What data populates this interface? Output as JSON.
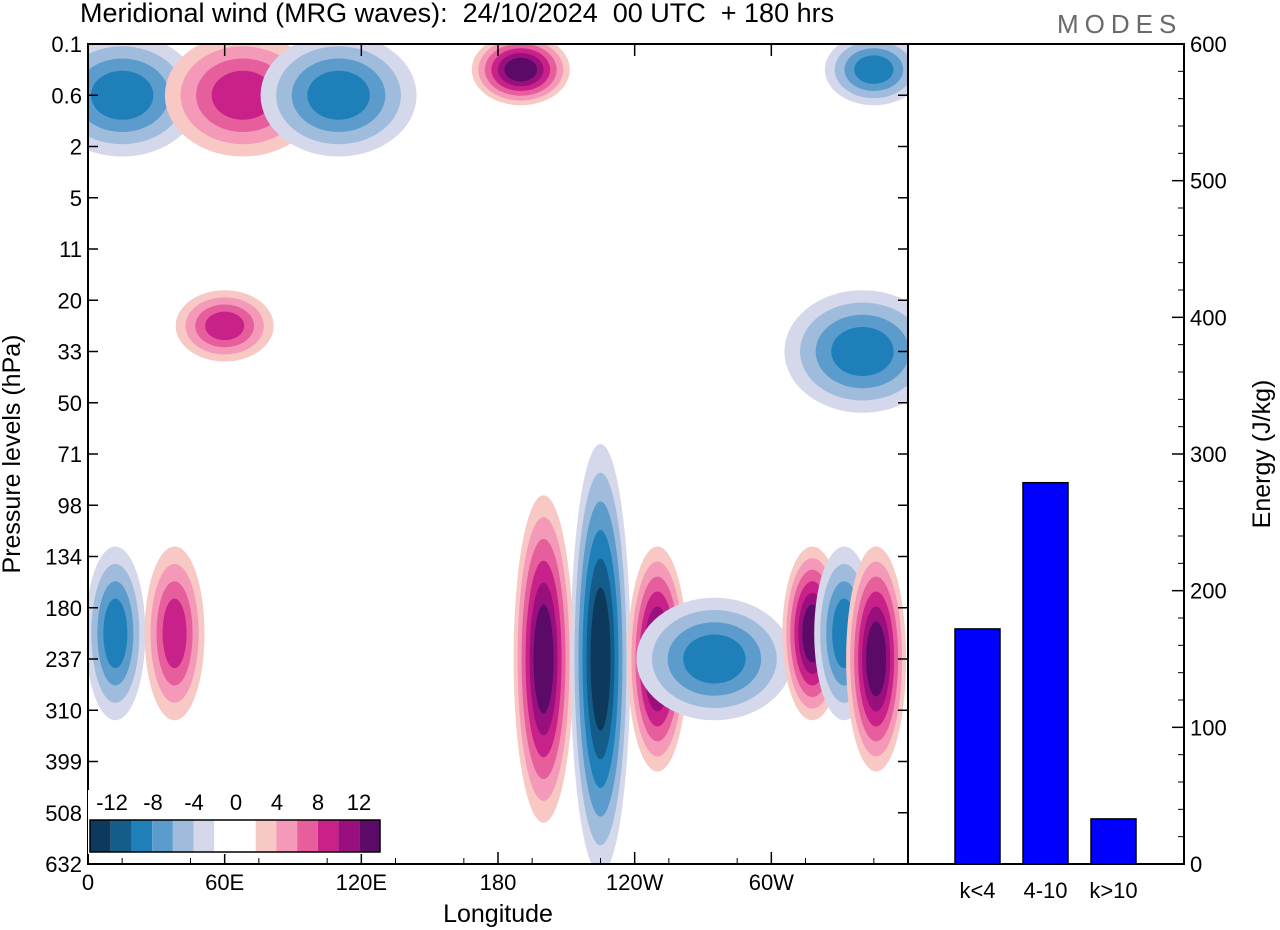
{
  "title": "Meridional wind (MRG waves):  24/10/2024  00 UTC  + 180 hrs",
  "brand": "MODES",
  "contour_panel": {
    "xlabel": "Longitude",
    "ylabel": "Pressure levels (hPa)",
    "x_ticks": [
      "0",
      "60E",
      "120E",
      "180",
      "120W",
      "60W"
    ],
    "y_ticks": [
      "0.1",
      "0.6",
      "2",
      "5",
      "11",
      "20",
      "33",
      "50",
      "71",
      "98",
      "134",
      "180",
      "237",
      "310",
      "399",
      "508",
      "632"
    ],
    "colorbar": {
      "labels": [
        "-12",
        "-8",
        "-4",
        "0",
        "4",
        "8",
        "12"
      ],
      "colors": [
        "#0d3a5c",
        "#145c8a",
        "#1f7fb8",
        "#5b9ccc",
        "#a0bcdc",
        "#d4d8ea",
        "#ffffff",
        "#ffffff",
        "#f8c8c4",
        "#f49ab8",
        "#e65e9c",
        "#c8218a",
        "#9a0f7e",
        "#5c0a68"
      ]
    }
  },
  "chart_data": [
    {
      "type": "heatmap",
      "title": "Meridional wind (MRG waves):  24/10/2024  00 UTC  + 180 hrs",
      "xlabel": "Longitude",
      "ylabel": "Pressure levels (hPa)",
      "x_tick_labels": [
        "0",
        "60E",
        "120E",
        "180",
        "120W",
        "60W"
      ],
      "y_levels_hPa": [
        0.1,
        0.6,
        2,
        5,
        11,
        20,
        33,
        50,
        71,
        98,
        134,
        180,
        237,
        310,
        399,
        508,
        632
      ],
      "colorbar_levels": [
        -12,
        -8,
        -4,
        0,
        4,
        8,
        12
      ],
      "features": [
        {
          "sign": "positive",
          "lon_deg_east": 200,
          "p_top_hPa": 98,
          "p_bottom_hPa": 508,
          "peak": 12
        },
        {
          "sign": "negative",
          "lon_deg_east": 225,
          "p_top_hPa": 71,
          "p_bottom_hPa": 632,
          "peak": -12
        },
        {
          "sign": "positive",
          "lon_deg_east": 250,
          "p_top_hPa": 134,
          "p_bottom_hPa": 399,
          "peak": 12
        },
        {
          "sign": "negative",
          "lon_deg_east": 275,
          "p_top_hPa": 180,
          "p_bottom_hPa": 310,
          "peak": -8
        },
        {
          "sign": "positive",
          "lon_deg_east": 318,
          "p_top_hPa": 134,
          "p_bottom_hPa": 310,
          "peak": 12
        },
        {
          "sign": "negative",
          "lon_deg_east": 332,
          "p_top_hPa": 134,
          "p_bottom_hPa": 310,
          "peak": -8
        },
        {
          "sign": "positive",
          "lon_deg_east": 346,
          "p_top_hPa": 134,
          "p_bottom_hPa": 399,
          "peak": 12
        },
        {
          "sign": "negative",
          "lon_deg_east": 12,
          "p_top_hPa": 134,
          "p_bottom_hPa": 310,
          "peak": -8
        },
        {
          "sign": "positive",
          "lon_deg_east": 38,
          "p_top_hPa": 134,
          "p_bottom_hPa": 310,
          "peak": 8
        },
        {
          "sign": "negative",
          "lon_deg_east": 15,
          "p_top_hPa": 0.1,
          "p_bottom_hPa": 2,
          "peak": -8
        },
        {
          "sign": "positive",
          "lon_deg_east": 68,
          "p_top_hPa": 0.1,
          "p_bottom_hPa": 2,
          "peak": 8
        },
        {
          "sign": "negative",
          "lon_deg_east": 110,
          "p_top_hPa": 0.1,
          "p_bottom_hPa": 2,
          "peak": -8
        },
        {
          "sign": "positive",
          "lon_deg_east": 190,
          "p_top_hPa": 0.1,
          "p_bottom_hPa": 0.6,
          "peak": 12
        },
        {
          "sign": "negative",
          "lon_deg_east": 345,
          "p_top_hPa": 0.1,
          "p_bottom_hPa": 0.6,
          "peak": -8
        },
        {
          "sign": "positive",
          "lon_deg_east": 60,
          "p_top_hPa": 20,
          "p_bottom_hPa": 33,
          "peak": 8
        },
        {
          "sign": "negative",
          "lon_deg_east": 340,
          "p_top_hPa": 20,
          "p_bottom_hPa": 50,
          "peak": -8
        }
      ]
    },
    {
      "type": "bar",
      "categories": [
        "k<4",
        "4-10",
        "k>10"
      ],
      "values": [
        172,
        279,
        33
      ],
      "ylabel": "Energy (J/kg)",
      "ylim": [
        0,
        600
      ],
      "y_ticks": [
        0,
        100,
        200,
        300,
        400,
        500,
        600
      ],
      "color": "#0000ff"
    }
  ]
}
